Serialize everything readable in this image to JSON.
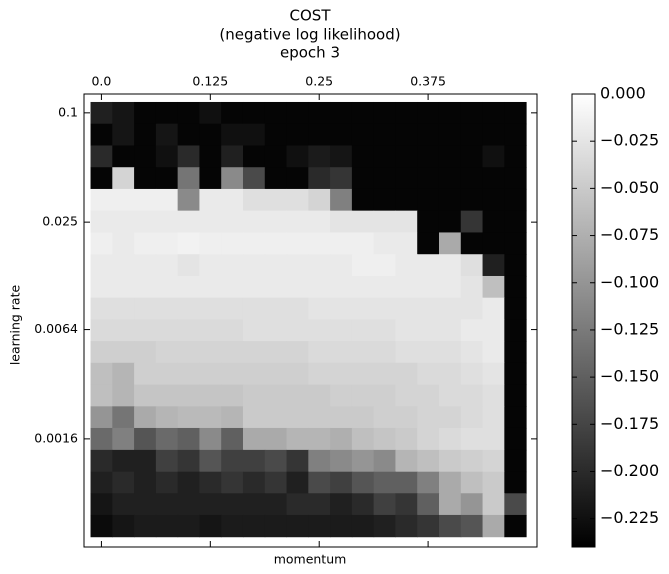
{
  "chart_data": {
    "type": "heatmap",
    "title": [
      "COST",
      "(negative log likelihood)",
      "epoch 3"
    ],
    "xlabel": "momentum",
    "ylabel": "learning rate",
    "x": [
      0,
      0.025,
      0.05,
      0.075,
      0.1,
      0.125,
      0.15,
      0.175,
      0.2,
      0.225,
      0.25,
      0.275,
      0.3,
      0.325,
      0.35,
      0.375,
      0.4,
      0.425,
      0.45,
      0.475
    ],
    "y": [
      0.1,
      0.0759,
      0.0576,
      0.0437,
      0.0332,
      0.0252,
      0.0191,
      0.0145,
      0.011,
      0.00836,
      0.00635,
      0.00482,
      0.00366,
      0.00277,
      0.00211,
      0.0016,
      0.00121,
      0.00092,
      0.0007,
      0.000531
    ],
    "xlim": [
      -0.02,
      0.5
    ],
    "ylim": [
      0.000406,
      0.127
    ],
    "yscale": "log",
    "xticks": [
      {
        "value": 0,
        "label": "0.0"
      },
      0.125,
      0.25,
      0.375
    ],
    "yticks": [
      0.1,
      0.025,
      0.0064,
      0.0016
    ],
    "colormap": "gray",
    "clim": [
      -0.24,
      0
    ],
    "cticks": [
      {
        "value": 0,
        "label": "0.000"
      },
      {
        "value": -0.025,
        "label": "−0.025"
      },
      {
        "value": -0.05,
        "label": "−0.050"
      },
      {
        "value": -0.075,
        "label": "−0.075"
      },
      {
        "value": -0.1,
        "label": "−0.100"
      },
      {
        "value": -0.125,
        "label": "−0.125"
      },
      {
        "value": -0.15,
        "label": "−0.150"
      },
      {
        "value": -0.175,
        "label": "−0.175"
      },
      {
        "value": -0.2,
        "label": "−0.200"
      },
      {
        "value": -0.225,
        "label": "−0.225"
      }
    ],
    "values": [
      [
        -0.21,
        -0.22,
        -0.235,
        -0.235,
        -0.235,
        -0.225,
        -0.235,
        -0.235,
        -0.235,
        -0.235,
        -0.235,
        -0.235,
        -0.235,
        -0.235,
        -0.235,
        -0.235,
        -0.235,
        -0.235,
        -0.235,
        -0.235
      ],
      [
        -0.235,
        -0.22,
        -0.235,
        -0.22,
        -0.235,
        -0.235,
        -0.225,
        -0.225,
        -0.235,
        -0.235,
        -0.235,
        -0.235,
        -0.235,
        -0.235,
        -0.235,
        -0.235,
        -0.235,
        -0.235,
        -0.235,
        -0.235
      ],
      [
        -0.2,
        -0.235,
        -0.235,
        -0.225,
        -0.2,
        -0.235,
        -0.21,
        -0.235,
        -0.235,
        -0.225,
        -0.215,
        -0.22,
        -0.235,
        -0.235,
        -0.235,
        -0.235,
        -0.235,
        -0.235,
        -0.225,
        -0.235
      ],
      [
        -0.235,
        -0.04,
        -0.235,
        -0.235,
        -0.13,
        -0.235,
        -0.11,
        -0.17,
        -0.235,
        -0.235,
        -0.2,
        -0.19,
        -0.235,
        -0.235,
        -0.235,
        -0.235,
        -0.235,
        -0.235,
        -0.235,
        -0.235
      ],
      [
        -0.015,
        -0.015,
        -0.015,
        -0.015,
        -0.11,
        -0.02,
        -0.02,
        -0.03,
        -0.03,
        -0.03,
        -0.04,
        -0.12,
        -0.235,
        -0.235,
        -0.235,
        -0.235,
        -0.235,
        -0.235,
        -0.235,
        -0.235
      ],
      [
        -0.02,
        -0.02,
        -0.02,
        -0.02,
        -0.02,
        -0.02,
        -0.02,
        -0.02,
        -0.02,
        -0.02,
        -0.02,
        -0.025,
        -0.025,
        -0.025,
        -0.025,
        -0.235,
        -0.235,
        -0.19,
        -0.235,
        -0.235
      ],
      [
        -0.015,
        -0.02,
        -0.015,
        -0.015,
        -0.012,
        -0.015,
        -0.015,
        -0.015,
        -0.015,
        -0.015,
        -0.015,
        -0.015,
        -0.015,
        -0.02,
        -0.02,
        -0.235,
        -0.08,
        -0.235,
        -0.235,
        -0.235
      ],
      [
        -0.02,
        -0.02,
        -0.02,
        -0.02,
        -0.025,
        -0.02,
        -0.02,
        -0.02,
        -0.02,
        -0.02,
        -0.02,
        -0.02,
        -0.015,
        -0.015,
        -0.02,
        -0.02,
        -0.02,
        -0.03,
        -0.21,
        -0.235
      ],
      [
        -0.02,
        -0.02,
        -0.02,
        -0.02,
        -0.02,
        -0.02,
        -0.02,
        -0.02,
        -0.02,
        -0.02,
        -0.02,
        -0.02,
        -0.02,
        -0.02,
        -0.02,
        -0.02,
        -0.02,
        -0.025,
        -0.06,
        -0.235
      ],
      [
        -0.03,
        -0.03,
        -0.03,
        -0.03,
        -0.03,
        -0.03,
        -0.03,
        -0.03,
        -0.03,
        -0.03,
        -0.025,
        -0.025,
        -0.025,
        -0.025,
        -0.025,
        -0.025,
        -0.025,
        -0.025,
        -0.02,
        -0.235
      ],
      [
        -0.035,
        -0.035,
        -0.035,
        -0.035,
        -0.035,
        -0.035,
        -0.035,
        -0.03,
        -0.03,
        -0.03,
        -0.03,
        -0.03,
        -0.03,
        -0.03,
        -0.025,
        -0.025,
        -0.025,
        -0.02,
        -0.02,
        -0.235
      ],
      [
        -0.045,
        -0.045,
        -0.045,
        -0.04,
        -0.04,
        -0.04,
        -0.04,
        -0.04,
        -0.04,
        -0.04,
        -0.035,
        -0.035,
        -0.035,
        -0.035,
        -0.03,
        -0.03,
        -0.03,
        -0.025,
        -0.02,
        -0.235
      ],
      [
        -0.06,
        -0.07,
        -0.045,
        -0.045,
        -0.045,
        -0.045,
        -0.045,
        -0.045,
        -0.045,
        -0.045,
        -0.04,
        -0.04,
        -0.04,
        -0.04,
        -0.04,
        -0.035,
        -0.035,
        -0.03,
        -0.025,
        -0.235
      ],
      [
        -0.06,
        -0.07,
        -0.055,
        -0.055,
        -0.055,
        -0.055,
        -0.055,
        -0.05,
        -0.05,
        -0.05,
        -0.05,
        -0.045,
        -0.045,
        -0.045,
        -0.04,
        -0.04,
        -0.035,
        -0.035,
        -0.03,
        -0.235
      ],
      [
        -0.1,
        -0.13,
        -0.08,
        -0.07,
        -0.065,
        -0.065,
        -0.07,
        -0.05,
        -0.05,
        -0.05,
        -0.05,
        -0.05,
        -0.05,
        -0.045,
        -0.045,
        -0.04,
        -0.04,
        -0.035,
        -0.03,
        -0.235
      ],
      [
        -0.14,
        -0.12,
        -0.16,
        -0.14,
        -0.15,
        -0.11,
        -0.15,
        -0.08,
        -0.08,
        -0.07,
        -0.07,
        -0.075,
        -0.06,
        -0.055,
        -0.05,
        -0.04,
        -0.035,
        -0.03,
        -0.03,
        -0.235
      ],
      [
        -0.2,
        -0.21,
        -0.21,
        -0.18,
        -0.19,
        -0.16,
        -0.18,
        -0.18,
        -0.17,
        -0.19,
        -0.12,
        -0.11,
        -0.1,
        -0.11,
        -0.07,
        -0.06,
        -0.05,
        -0.045,
        -0.04,
        -0.235
      ],
      [
        -0.21,
        -0.2,
        -0.21,
        -0.2,
        -0.21,
        -0.2,
        -0.19,
        -0.2,
        -0.19,
        -0.21,
        -0.17,
        -0.18,
        -0.16,
        -0.15,
        -0.15,
        -0.12,
        -0.08,
        -0.06,
        -0.05,
        -0.235
      ],
      [
        -0.22,
        -0.21,
        -0.21,
        -0.21,
        -0.21,
        -0.21,
        -0.21,
        -0.21,
        -0.21,
        -0.2,
        -0.2,
        -0.21,
        -0.2,
        -0.18,
        -0.19,
        -0.15,
        -0.08,
        -0.1,
        -0.05,
        -0.17
      ],
      [
        -0.23,
        -0.22,
        -0.215,
        -0.215,
        -0.215,
        -0.22,
        -0.215,
        -0.215,
        -0.215,
        -0.215,
        -0.215,
        -0.215,
        -0.215,
        -0.21,
        -0.2,
        -0.19,
        -0.17,
        -0.16,
        -0.08,
        -0.235
      ]
    ]
  }
}
